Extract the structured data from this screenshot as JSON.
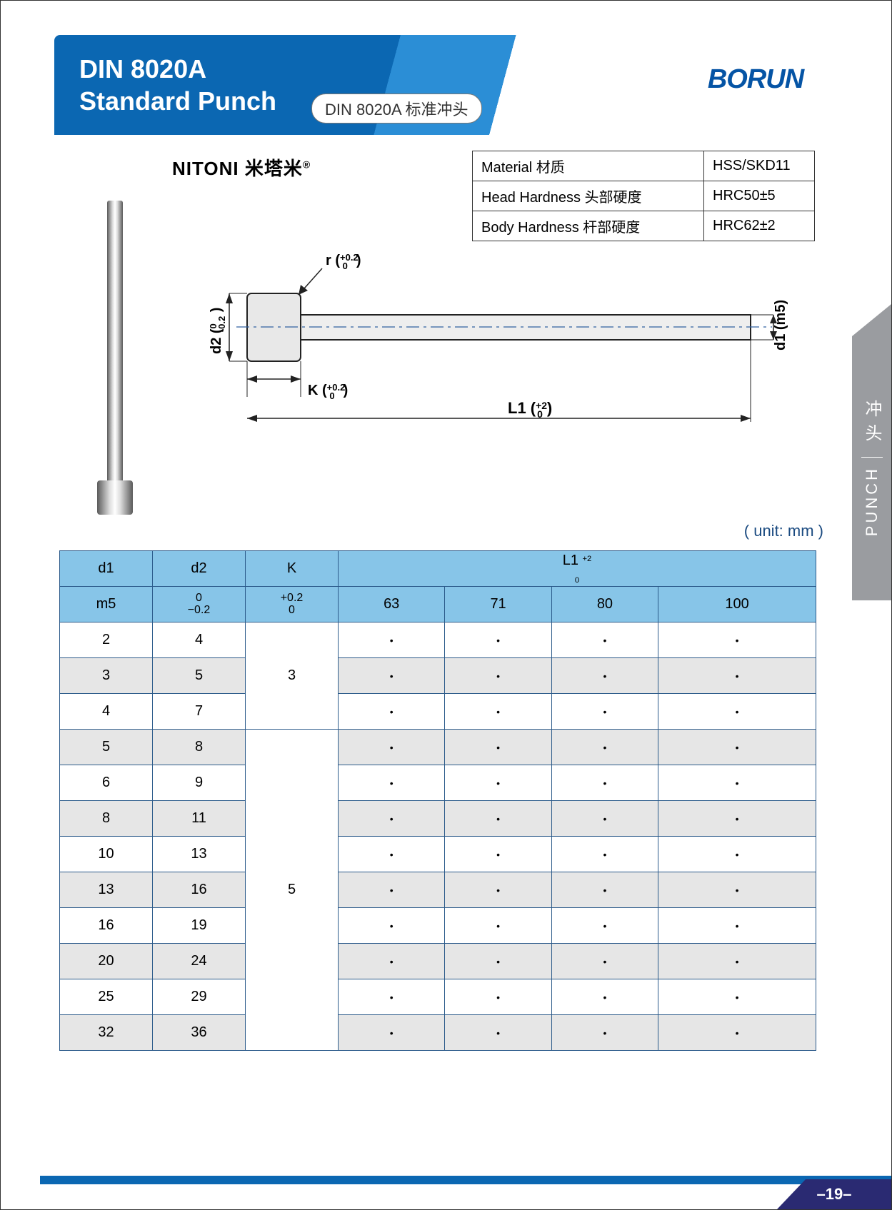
{
  "header": {
    "title_line1": "DIN 8020A",
    "title_line2": "Standard Punch",
    "subtitle": "DIN 8020A 标准冲头",
    "logo": "BORUN",
    "brand": "NITONI 米塔米"
  },
  "material_table": {
    "rows": [
      {
        "label": "Material 材质",
        "value": "HSS/SKD11"
      },
      {
        "label": "Head Hardness  头部硬度",
        "value": "HRC50±5"
      },
      {
        "label": "Body Hardness  杆部硬度",
        "value": "HRC62±2"
      }
    ]
  },
  "side_tab": {
    "en": "PUNCH",
    "zh": "冲头"
  },
  "diagram": {
    "labels": {
      "r": "r",
      "r_tol_top": "+0.2",
      "r_tol_bot": "0",
      "d2": "d2",
      "d2_tol_top": "0",
      "d2_tol_bot": "-0.2",
      "K": "K",
      "K_tol_top": "+0.2",
      "K_tol_bot": "0",
      "L1": "L1",
      "L1_tol_top": "+2",
      "L1_tol_bot": "0",
      "d1": "d1 (m5)"
    },
    "colors": {
      "line": "#222222",
      "centerline": "#3060a0",
      "part": "#cccccc"
    }
  },
  "unit_label": "( unit: mm )",
  "spec_table": {
    "headers": {
      "d1": "d1",
      "d2": "d2",
      "K": "K",
      "L1": "L1",
      "L1_tol_top": "+2",
      "L1_tol_bot": "0",
      "d1_sub": "m5",
      "d2_tol_top": "0",
      "d2_tol_bot": "−0.2",
      "K_tol_top": "+0.2",
      "K_tol_bot": "0",
      "L1_values": [
        "63",
        "71",
        "80",
        "100"
      ]
    },
    "header_bg": "#87c5e8",
    "border_color": "#2b5a8a",
    "alt_row_bg": "#e6e6e6",
    "rows": [
      {
        "d1": "2",
        "d2": "4",
        "K": "3",
        "marks": [
          "•",
          "•",
          "•",
          "•"
        ],
        "alt": false,
        "k_rowspan": 3
      },
      {
        "d1": "3",
        "d2": "5",
        "marks": [
          "•",
          "•",
          "•",
          "•"
        ],
        "alt": true
      },
      {
        "d1": "4",
        "d2": "7",
        "marks": [
          "•",
          "•",
          "•",
          "•"
        ],
        "alt": false
      },
      {
        "d1": "5",
        "d2": "8",
        "K": "5",
        "marks": [
          "•",
          "•",
          "•",
          "•"
        ],
        "alt": true,
        "k_rowspan": 9
      },
      {
        "d1": "6",
        "d2": "9",
        "marks": [
          "•",
          "•",
          "•",
          "•"
        ],
        "alt": false
      },
      {
        "d1": "8",
        "d2": "11",
        "marks": [
          "•",
          "•",
          "•",
          "•"
        ],
        "alt": true
      },
      {
        "d1": "10",
        "d2": "13",
        "marks": [
          "•",
          "•",
          "•",
          "•"
        ],
        "alt": false
      },
      {
        "d1": "13",
        "d2": "16",
        "marks": [
          "•",
          "•",
          "•",
          "•"
        ],
        "alt": true
      },
      {
        "d1": "16",
        "d2": "19",
        "marks": [
          "•",
          "•",
          "•",
          "•"
        ],
        "alt": false
      },
      {
        "d1": "20",
        "d2": "24",
        "marks": [
          "•",
          "•",
          "•",
          "•"
        ],
        "alt": true
      },
      {
        "d1": "25",
        "d2": "29",
        "marks": [
          "•",
          "•",
          "•",
          "•"
        ],
        "alt": false
      },
      {
        "d1": "32",
        "d2": "36",
        "marks": [
          "•",
          "•",
          "•",
          "•"
        ],
        "alt": true
      }
    ]
  },
  "page_number": "–19–"
}
